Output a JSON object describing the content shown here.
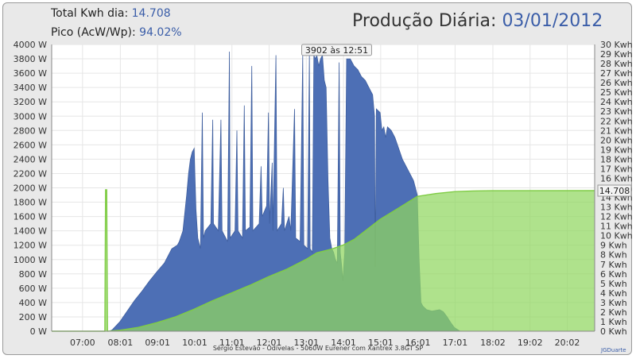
{
  "header": {
    "total_label": "Total Kwh dia:",
    "total_value": "14.708",
    "peak_label": "Pico (AcW/Wp):",
    "peak_value": "94.02%",
    "title_prefix": "Produção Diária:",
    "title_date": "03/01/2012"
  },
  "footer": {
    "description": "Sérgio Estevão  -  Odivelas  -  5060W Eurener com Xantrex 3.8GT SP",
    "credit": "JGDuarte"
  },
  "chart_data": {
    "type": "area",
    "title": "Produção Diária: 03/01/2012",
    "x_ticks": [
      "07:00",
      "08:01",
      "09:01",
      "10:01",
      "11:01",
      "12:01",
      "13:01",
      "14:01",
      "15:01",
      "16:01",
      "17:01",
      "18:02",
      "19:02",
      "20:02"
    ],
    "y_left": {
      "ticks": [
        "0 W",
        "200 W",
        "400 W",
        "600 W",
        "800 W",
        "1000 W",
        "1200 W",
        "1400 W",
        "1600 W",
        "1800 W",
        "2000 W",
        "2200 W",
        "2400 W",
        "2600 W",
        "2800 W",
        "3000 W",
        "3200 W",
        "3400 W",
        "3600 W",
        "3800 W",
        "4000 W"
      ],
      "range": [
        0,
        4000
      ]
    },
    "y_right": {
      "ticks": [
        "0 Kwh",
        "1 Kwh",
        "2 Kwh",
        "3 Kwh",
        "4 Kwh",
        "5 Kwh",
        "6 Kwh",
        "7 Kwh",
        "8 Kwh",
        "9 Kwh",
        "10 Kwh",
        "11 Kwh",
        "12 Kwh",
        "13 Kwh",
        "14 Kwh",
        "15 Kwh",
        "16 Kwh",
        "17 Kwh",
        "18 Kwh",
        "19 Kwh",
        "20 Kwh",
        "21 Kwh",
        "22 Kwh",
        "23 Kwh",
        "24 Kwh",
        "25 Kwh",
        "26 Kwh",
        "27 Kwh",
        "28 Kwh",
        "29 Kwh",
        "30 Kwh"
      ],
      "range": [
        0,
        30
      ]
    },
    "x_range": [
      6.17,
      20.77
    ],
    "grid": true,
    "series": [
      {
        "axis": "left",
        "color": "#4d6fb5",
        "points": [
          [
            7.68,
            0
          ],
          [
            7.72,
            0
          ],
          [
            7.8,
            20
          ],
          [
            8.0,
            130
          ],
          [
            8.2,
            280
          ],
          [
            8.4,
            430
          ],
          [
            8.6,
            560
          ],
          [
            8.8,
            700
          ],
          [
            9.0,
            830
          ],
          [
            9.2,
            950
          ],
          [
            9.4,
            1150
          ],
          [
            9.55,
            1200
          ],
          [
            9.6,
            1250
          ],
          [
            9.7,
            1400
          ],
          [
            9.8,
            1900
          ],
          [
            9.85,
            2200
          ],
          [
            9.9,
            2400
          ],
          [
            9.95,
            2500
          ],
          [
            10.0,
            2550
          ],
          [
            10.05,
            1700
          ],
          [
            10.1,
            1300
          ],
          [
            10.17,
            1150
          ],
          [
            10.22,
            3050
          ],
          [
            10.25,
            1300
          ],
          [
            10.3,
            1400
          ],
          [
            10.45,
            1500
          ],
          [
            10.5,
            2950
          ],
          [
            10.52,
            1500
          ],
          [
            10.65,
            1400
          ],
          [
            10.72,
            2950
          ],
          [
            10.75,
            1400
          ],
          [
            10.9,
            1250
          ],
          [
            10.95,
            3900
          ],
          [
            10.97,
            1300
          ],
          [
            11.1,
            1400
          ],
          [
            11.15,
            2800
          ],
          [
            11.18,
            1400
          ],
          [
            11.3,
            1300
          ],
          [
            11.35,
            3150
          ],
          [
            11.38,
            1400
          ],
          [
            11.5,
            1450
          ],
          [
            11.55,
            3700
          ],
          [
            11.58,
            1400
          ],
          [
            11.75,
            1500
          ],
          [
            11.8,
            2300
          ],
          [
            11.83,
            1600
          ],
          [
            11.95,
            1750
          ],
          [
            12.0,
            3050
          ],
          [
            12.03,
            1500
          ],
          [
            12.1,
            2350
          ],
          [
            12.12,
            1400
          ],
          [
            12.2,
            3850
          ],
          [
            12.23,
            1400
          ],
          [
            12.35,
            1500
          ],
          [
            12.4,
            2000
          ],
          [
            12.43,
            1400
          ],
          [
            12.55,
            1600
          ],
          [
            12.6,
            1400
          ],
          [
            12.7,
            3100
          ],
          [
            12.73,
            1300
          ],
          [
            12.85,
            1250
          ],
          [
            12.92,
            3850
          ],
          [
            12.95,
            1200
          ],
          [
            13.05,
            1150
          ],
          [
            13.1,
            3900
          ],
          [
            13.12,
            1150
          ],
          [
            13.18,
            1100
          ],
          [
            13.22,
            3850
          ],
          [
            13.26,
            3800
          ],
          [
            13.3,
            3850
          ],
          [
            13.35,
            3700
          ],
          [
            13.4,
            3800
          ],
          [
            13.45,
            3850
          ],
          [
            13.5,
            3500
          ],
          [
            13.55,
            3400
          ],
          [
            13.6,
            2100
          ],
          [
            13.65,
            1300
          ],
          [
            13.7,
            1150
          ],
          [
            13.75,
            1100
          ],
          [
            13.8,
            1000
          ],
          [
            13.85,
            950
          ],
          [
            13.9,
            3750
          ],
          [
            13.93,
            1100
          ],
          [
            13.97,
            900
          ],
          [
            14.0,
            700
          ],
          [
            14.05,
            1100
          ],
          [
            14.1,
            3800
          ],
          [
            14.2,
            3800
          ],
          [
            14.3,
            3700
          ],
          [
            14.4,
            3650
          ],
          [
            14.5,
            3550
          ],
          [
            14.6,
            3500
          ],
          [
            14.7,
            3400
          ],
          [
            14.8,
            3300
          ],
          [
            14.85,
            3000
          ],
          [
            14.87,
            900
          ],
          [
            14.9,
            3100
          ],
          [
            15.0,
            3050
          ],
          [
            15.05,
            2800
          ],
          [
            15.1,
            2850
          ],
          [
            15.15,
            2700
          ],
          [
            15.2,
            2850
          ],
          [
            15.3,
            2800
          ],
          [
            15.4,
            2700
          ],
          [
            15.5,
            2550
          ],
          [
            15.6,
            2400
          ],
          [
            15.7,
            2300
          ],
          [
            15.8,
            2200
          ],
          [
            15.9,
            2100
          ],
          [
            16.0,
            1900
          ],
          [
            16.05,
            1000
          ],
          [
            16.1,
            400
          ],
          [
            16.15,
            350
          ],
          [
            16.25,
            300
          ],
          [
            16.4,
            280
          ],
          [
            16.6,
            300
          ],
          [
            16.7,
            270
          ],
          [
            16.8,
            200
          ],
          [
            16.9,
            120
          ],
          [
            17.0,
            50
          ],
          [
            17.15,
            0
          ]
        ]
      },
      {
        "axis": "right",
        "color": "#90d760",
        "points": [
          [
            6.17,
            0
          ],
          [
            7.6,
            0
          ],
          [
            7.62,
            14.8
          ],
          [
            7.65,
            14.8
          ],
          [
            7.67,
            0
          ],
          [
            8.0,
            0.1
          ],
          [
            8.5,
            0.4
          ],
          [
            9.0,
            0.9
          ],
          [
            9.5,
            1.5
          ],
          [
            10.0,
            2.3
          ],
          [
            10.5,
            3.2
          ],
          [
            11.0,
            4.0
          ],
          [
            11.5,
            4.8
          ],
          [
            12.0,
            5.7
          ],
          [
            12.5,
            6.5
          ],
          [
            13.0,
            7.5
          ],
          [
            13.3,
            8.2
          ],
          [
            13.5,
            8.4
          ],
          [
            13.7,
            8.6
          ],
          [
            14.0,
            9.0
          ],
          [
            14.3,
            9.6
          ],
          [
            14.5,
            10.2
          ],
          [
            15.0,
            11.7
          ],
          [
            15.5,
            12.9
          ],
          [
            16.0,
            14.1
          ],
          [
            16.5,
            14.4
          ],
          [
            17.0,
            14.6
          ],
          [
            17.5,
            14.68
          ],
          [
            18.0,
            14.7
          ],
          [
            20.77,
            14.708
          ]
        ]
      }
    ],
    "annotations": [
      "3902 às 12:51",
      "14.708"
    ]
  }
}
